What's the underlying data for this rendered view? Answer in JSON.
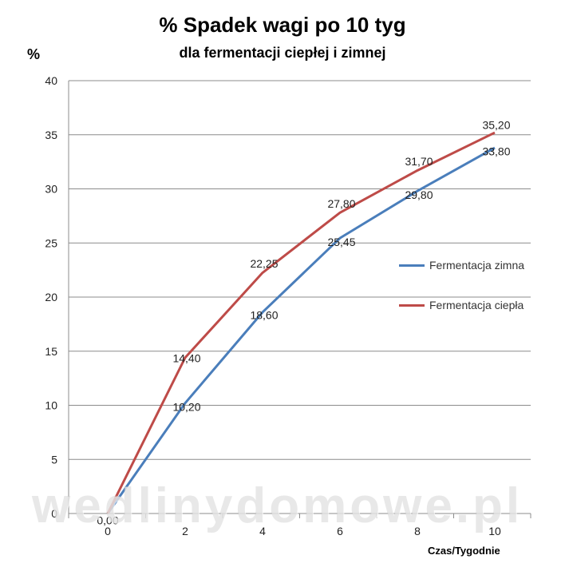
{
  "chart_data": {
    "type": "line",
    "title": "% Spadek wagi po 10 tyg",
    "subtitle": "dla fermentacji ciepłej i zimnej",
    "ylabel": "%",
    "xlabel": "Czas/Tygodnie",
    "x": [
      0,
      2,
      4,
      6,
      8,
      10
    ],
    "x_ticks": [
      "0",
      "2",
      "4",
      "6",
      "8",
      "10"
    ],
    "y_ticks": [
      "0",
      "5",
      "10",
      "15",
      "20",
      "25",
      "30",
      "35",
      "40"
    ],
    "ylim": [
      0,
      40
    ],
    "grid": true,
    "legend_position": "right",
    "series": [
      {
        "name": "Fermentacja zimna",
        "color": "#4a7ebb",
        "values": [
          0.0,
          10.2,
          18.6,
          25.45,
          29.8,
          33.8
        ],
        "labels": [
          "0,00",
          "10,20",
          "18,60",
          "25,45",
          "29,80",
          "33,80"
        ]
      },
      {
        "name": "Fermentacja ciepła",
        "color": "#be4b48",
        "values": [
          0.0,
          14.4,
          22.25,
          27.8,
          31.7,
          35.2
        ],
        "labels": [
          "",
          "14,40",
          "22,25",
          "27,80",
          "31,70",
          "35,20"
        ]
      }
    ]
  },
  "watermark": "wedlinydomowe.pl"
}
